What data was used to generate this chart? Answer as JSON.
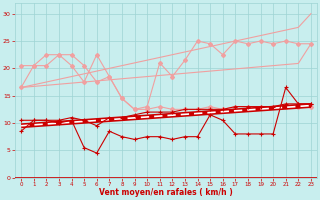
{
  "x": [
    0,
    1,
    2,
    3,
    4,
    5,
    6,
    7,
    8,
    9,
    10,
    11,
    12,
    13,
    14,
    15,
    16,
    17,
    18,
    19,
    20,
    21,
    22,
    23
  ],
  "line_pink_upper_straight": [
    16.5,
    17.0,
    17.5,
    18.0,
    18.5,
    19.0,
    19.5,
    20.0,
    20.5,
    21.0,
    21.5,
    22.0,
    22.5,
    23.0,
    23.5,
    24.0,
    24.5,
    25.0,
    25.5,
    26.0,
    26.5,
    27.0,
    27.5,
    30.0
  ],
  "line_pink_lower_straight": [
    16.5,
    16.7,
    16.9,
    17.1,
    17.3,
    17.5,
    17.7,
    17.9,
    18.1,
    18.3,
    18.5,
    18.7,
    18.9,
    19.1,
    19.3,
    19.5,
    19.7,
    19.9,
    20.1,
    20.3,
    20.5,
    20.7,
    20.9,
    24.5
  ],
  "line_pink_wavy1": [
    20.5,
    20.5,
    22.5,
    22.5,
    20.5,
    17.5,
    22.5,
    18.5,
    14.5,
    12.5,
    13.0,
    21.0,
    18.5,
    21.5,
    25.0,
    24.5,
    22.5,
    25.0,
    24.5,
    25.0,
    24.5,
    25.0,
    24.5,
    24.5
  ],
  "line_pink_wavy2": [
    16.5,
    20.5,
    20.5,
    22.5,
    22.5,
    20.5,
    17.5,
    18.5,
    14.5,
    12.5,
    12.5,
    13.0,
    12.5,
    12.5,
    12.5,
    13.0,
    12.5,
    13.0,
    13.0,
    13.0,
    13.0,
    13.0,
    13.0,
    13.0
  ],
  "line_dark_upper": [
    10.5,
    10.5,
    10.5,
    10.5,
    11.0,
    10.5,
    9.5,
    11.0,
    11.0,
    11.5,
    12.0,
    12.0,
    12.0,
    12.5,
    12.5,
    12.5,
    12.5,
    13.0,
    13.0,
    13.0,
    13.0,
    13.5,
    13.5,
    13.5
  ],
  "line_dark_lower": [
    8.5,
    10.5,
    10.5,
    10.0,
    10.5,
    5.5,
    4.5,
    8.5,
    7.5,
    7.0,
    7.5,
    7.5,
    7.0,
    7.5,
    7.5,
    11.5,
    10.5,
    8.0,
    8.0,
    8.0,
    8.0,
    16.5,
    13.5,
    13.5
  ],
  "line_trend_y0": 9.5,
  "line_trend_y23": 13.2,
  "bg_color": "#c8eeee",
  "grid_color": "#9ed4d4",
  "color_light": "#f0a0a0",
  "color_dark": "#cc0000",
  "xlabel": "Vent moyen/en rafales ( km/h )",
  "ylim": [
    0,
    32
  ],
  "xlim": [
    -0.5,
    23.5
  ],
  "yticks": [
    0,
    5,
    10,
    15,
    20,
    25,
    30
  ],
  "xticks": [
    0,
    1,
    2,
    3,
    4,
    5,
    6,
    7,
    8,
    9,
    10,
    11,
    12,
    13,
    14,
    15,
    16,
    17,
    18,
    19,
    20,
    21,
    22,
    23
  ]
}
